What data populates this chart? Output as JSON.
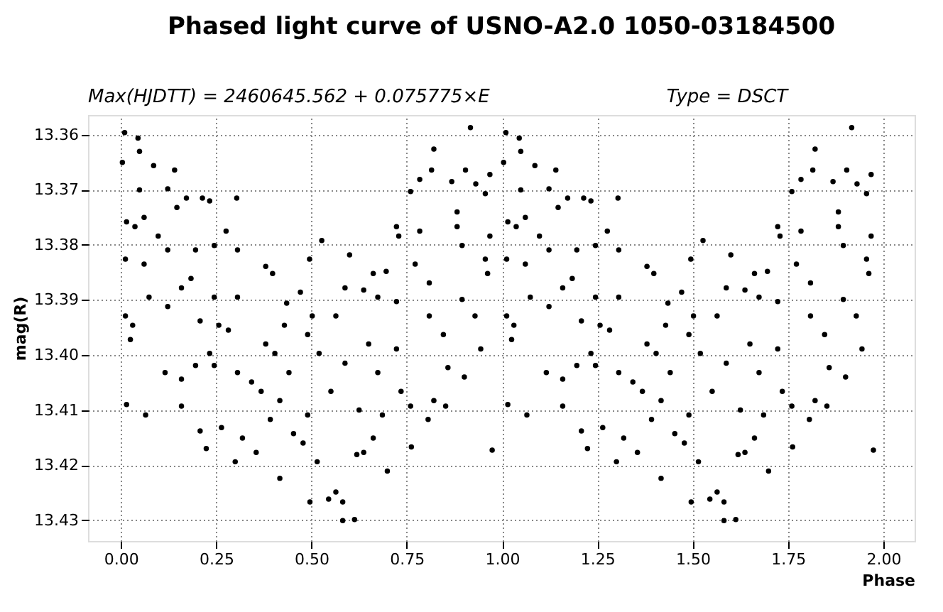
{
  "chart_data": {
    "type": "scatter",
    "title": "Phased light curve of USNO-A2.0 1050-03184500",
    "annotations": [
      "Max(HJDTT) = 2460645.562 + 0.075775×E",
      "Type = DSCT"
    ],
    "xlabel": "Phase",
    "ylabel": "mag(R)",
    "xlim": [
      -0.086,
      2.082
    ],
    "ylim": [
      13.4338,
      13.3564
    ],
    "xticks": [
      {
        "value": 0,
        "label": "0.00"
      },
      0.25,
      {
        "value": 0.5,
        "label": "0.50"
      },
      0.75,
      {
        "value": 1,
        "label": "1.00"
      },
      1.25,
      {
        "value": 1.5,
        "label": "1.50"
      },
      1.75,
      {
        "value": 2,
        "label": "2.00"
      }
    ],
    "yticks": [
      13.36,
      13.37,
      13.38,
      13.39,
      {
        "value": 13.4,
        "label": "13.40"
      },
      13.41,
      13.42,
      13.43
    ],
    "grid": true,
    "marker": "circle",
    "series": [
      {
        "color": "#000000",
        "x": [
          0.01,
          0.004,
          0.045,
          0.049,
          0.015,
          0.037,
          0.086,
          0.141,
          0.049,
          0.123,
          0.061,
          0.098,
          0.147,
          0.012,
          0.061,
          0.123,
          0.196,
          0.172,
          0.233,
          0.214,
          0.012,
          0.031,
          0.025,
          0.015,
          0.065,
          0.074,
          0.123,
          0.159,
          0.208,
          0.184,
          0.245,
          0.276,
          0.245,
          0.257,
          0.233,
          0.282,
          0.306,
          0.304,
          0.306,
          0.245,
          0.196,
          0.159,
          0.116,
          0.208,
          0.224,
          0.264,
          0.159,
          0.3,
          0.319,
          0.306,
          0.343,
          0.38,
          0.398,
          0.38,
          0.404,
          0.429,
          0.368,
          0.392,
          0.355,
          0.417,
          0.417,
          0.453,
          0.441,
          0.471,
          0.435,
          0.49,
          0.495,
          0.527,
          0.49,
          0.478,
          0.496,
          0.515,
          0.502,
          0.52,
          0.545,
          0.564,
          0.582,
          0.613,
          0.582,
          0.551,
          0.588,
          0.588,
          0.6,
          0.564,
          0.637,
          0.619,
          0.662,
          0.637,
          0.674,
          0.65,
          0.674,
          0.625,
          0.662,
          0.699,
          0.686,
          0.723,
          0.696,
          0.723,
          0.729,
          0.723,
          0.735,
          0.76,
          0.762,
          0.76,
          0.784,
          0.784,
          0.772,
          0.809,
          0.821,
          0.815,
          0.806,
          0.821,
          0.858,
          0.852,
          0.846,
          0.868,
          0.882,
          0.895,
          0.917,
          0.904,
          0.931,
          0.956,
          0.895,
          0.901,
          0.929,
          0.944,
          0.968,
          0.956,
          0.968,
          0.974,
          0.962,
          0.882,
          0.809,
          1.01,
          1.004,
          1.045,
          1.049,
          1.015,
          1.037,
          1.086,
          1.141,
          1.049,
          1.123,
          1.061,
          1.098,
          1.147,
          1.012,
          1.061,
          1.123,
          1.196,
          1.172,
          1.233,
          1.214,
          1.012,
          1.031,
          1.025,
          1.015,
          1.065,
          1.074,
          1.123,
          1.159,
          1.208,
          1.184,
          1.245,
          1.276,
          1.245,
          1.257,
          1.233,
          1.282,
          1.306,
          1.304,
          1.306,
          1.245,
          1.196,
          1.159,
          1.116,
          1.208,
          1.224,
          1.264,
          1.159,
          1.3,
          1.319,
          1.306,
          1.343,
          1.38,
          1.398,
          1.38,
          1.404,
          1.429,
          1.368,
          1.392,
          1.355,
          1.417,
          1.417,
          1.453,
          1.441,
          1.471,
          1.435,
          1.49,
          1.495,
          1.527,
          1.49,
          1.478,
          1.496,
          1.515,
          1.502,
          1.52,
          1.545,
          1.564,
          1.582,
          1.613,
          1.582,
          1.551,
          1.588,
          1.588,
          1.6,
          1.564,
          1.637,
          1.619,
          1.662,
          1.637,
          1.674,
          1.65,
          1.674,
          1.625,
          1.662,
          1.699,
          1.686,
          1.723,
          1.696,
          1.723,
          1.729,
          1.723,
          1.735,
          1.76,
          1.762,
          1.76,
          1.784,
          1.784,
          1.772,
          1.809,
          1.821,
          1.815,
          1.806,
          1.821,
          1.858,
          1.852,
          1.846,
          1.868,
          1.882,
          1.895,
          1.917,
          1.904,
          1.931,
          1.956,
          1.895,
          1.901,
          1.929,
          1.944,
          1.968,
          1.956,
          1.968,
          1.974,
          1.962,
          1.882,
          1.809
        ],
        "values": [
          13.3596,
          13.365,
          13.3606,
          13.363,
          13.3758,
          13.3767,
          13.3656,
          13.3664,
          13.37,
          13.3698,
          13.375,
          13.3784,
          13.3732,
          13.3826,
          13.3835,
          13.3809,
          13.3809,
          13.3715,
          13.372,
          13.3715,
          13.3929,
          13.3946,
          13.3972,
          13.409,
          13.4109,
          13.3895,
          13.3912,
          13.3878,
          13.3938,
          13.3861,
          13.3801,
          13.3775,
          13.3895,
          13.3946,
          13.3997,
          13.3955,
          13.3809,
          13.3715,
          13.3895,
          13.4019,
          13.4019,
          13.4044,
          13.4032,
          13.4138,
          13.417,
          13.4132,
          13.4093,
          13.4194,
          13.4151,
          13.4032,
          13.4049,
          13.3839,
          13.3852,
          13.398,
          13.3997,
          13.3946,
          13.4066,
          13.4117,
          13.4177,
          13.4083,
          13.4224,
          13.4143,
          13.4032,
          13.3886,
          13.3906,
          13.3963,
          13.3826,
          13.3792,
          13.4109,
          13.416,
          13.4267,
          13.4194,
          13.3929,
          13.3997,
          13.4262,
          13.4249,
          13.4301,
          13.4299,
          13.4267,
          13.4066,
          13.4015,
          13.3878,
          13.3818,
          13.3929,
          13.4177,
          13.4181,
          13.3852,
          13.3882,
          13.3895,
          13.398,
          13.4032,
          13.41,
          13.4151,
          13.4211,
          13.4109,
          13.3903,
          13.3848,
          13.3767,
          13.3784,
          13.3989,
          13.4066,
          13.4093,
          13.4167,
          13.3703,
          13.3775,
          13.3681,
          13.3835,
          13.3869,
          13.3626,
          13.3664,
          13.4117,
          13.4083,
          13.4023,
          13.4093,
          13.3963,
          13.3685,
          13.374,
          13.3801,
          13.3587,
          13.3664,
          13.3689,
          13.3707,
          13.3899,
          13.404,
          13.3929,
          13.3989,
          13.3672,
          13.3826,
          13.3784,
          13.4173,
          13.3852,
          13.3767,
          13.3929,
          13.3596,
          13.365,
          13.3606,
          13.363,
          13.3758,
          13.3767,
          13.3656,
          13.3664,
          13.37,
          13.3698,
          13.375,
          13.3784,
          13.3732,
          13.3826,
          13.3835,
          13.3809,
          13.3809,
          13.3715,
          13.372,
          13.3715,
          13.3929,
          13.3946,
          13.3972,
          13.409,
          13.4109,
          13.3895,
          13.3912,
          13.3878,
          13.3938,
          13.3861,
          13.3801,
          13.3775,
          13.3895,
          13.3946,
          13.3997,
          13.3955,
          13.3809,
          13.3715,
          13.3895,
          13.4019,
          13.4019,
          13.4044,
          13.4032,
          13.4138,
          13.417,
          13.4132,
          13.4093,
          13.4194,
          13.4151,
          13.4032,
          13.4049,
          13.3839,
          13.3852,
          13.398,
          13.3997,
          13.3946,
          13.4066,
          13.4117,
          13.4177,
          13.4083,
          13.4224,
          13.4143,
          13.4032,
          13.3886,
          13.3906,
          13.3963,
          13.3826,
          13.3792,
          13.4109,
          13.416,
          13.4267,
          13.4194,
          13.3929,
          13.3997,
          13.4262,
          13.4249,
          13.4301,
          13.4299,
          13.4267,
          13.4066,
          13.4015,
          13.3878,
          13.3818,
          13.3929,
          13.4177,
          13.4181,
          13.3852,
          13.3882,
          13.3895,
          13.398,
          13.4032,
          13.41,
          13.4151,
          13.4211,
          13.4109,
          13.3903,
          13.3848,
          13.3767,
          13.3784,
          13.3989,
          13.4066,
          13.4093,
          13.4167,
          13.3703,
          13.3775,
          13.3681,
          13.3835,
          13.3869,
          13.3626,
          13.3664,
          13.4117,
          13.4083,
          13.4023,
          13.4093,
          13.3963,
          13.3685,
          13.374,
          13.3801,
          13.3587,
          13.3664,
          13.3689,
          13.3707,
          13.3899,
          13.404,
          13.3929,
          13.3989,
          13.3672,
          13.3826,
          13.3784,
          13.4173,
          13.3852,
          13.3767,
          13.3929
        ]
      }
    ]
  }
}
